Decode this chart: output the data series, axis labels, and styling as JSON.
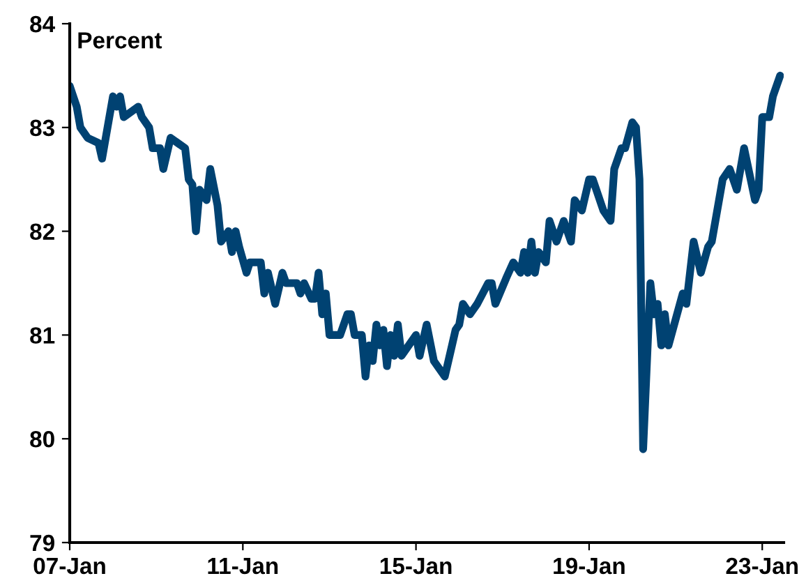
{
  "chart_data": {
    "type": "line",
    "ylabel": "Percent",
    "x": [
      "2007-01",
      "2007-03",
      "2007-04",
      "2007-06",
      "2007-09",
      "2007-10",
      "2008-01",
      "2008-02",
      "2008-03",
      "2008-04",
      "2008-08",
      "2008-09",
      "2008-11",
      "2008-12",
      "2009-02",
      "2009-03",
      "2009-05",
      "2009-07",
      "2009-09",
      "2009-10",
      "2009-11",
      "2009-12",
      "2010-01",
      "2010-03",
      "2010-04",
      "2010-06",
      "2010-07",
      "2010-09",
      "2010-10",
      "2010-11",
      "2010-12",
      "2011-02",
      "2011-03",
      "2011-06",
      "2011-07",
      "2011-08",
      "2011-10",
      "2011-12",
      "2012-01",
      "2012-04",
      "2012-05",
      "2012-06",
      "2012-08",
      "2012-09",
      "2012-10",
      "2012-11",
      "2012-12",
      "2013-01",
      "2013-04",
      "2013-06",
      "2013-07",
      "2013-08",
      "2013-10",
      "2013-11",
      "2013-12",
      "2014-01",
      "2014-02",
      "2014-03",
      "2014-04",
      "2014-05",
      "2014-06",
      "2014-07",
      "2014-08",
      "2014-09",
      "2014-11",
      "2015-01",
      "2015-02",
      "2015-04",
      "2015-06",
      "2015-09",
      "2015-11",
      "2015-12",
      "2016-01",
      "2016-02",
      "2016-04",
      "2016-06",
      "2016-09",
      "2016-10",
      "2016-11",
      "2017-02",
      "2017-04",
      "2017-06",
      "2017-07",
      "2017-08",
      "2017-09",
      "2017-10",
      "2017-11",
      "2018-01",
      "2018-02",
      "2018-04",
      "2018-06",
      "2018-08",
      "2018-09",
      "2018-11",
      "2019-01",
      "2019-02",
      "2019-05",
      "2019-07",
      "2019-08",
      "2019-10",
      "2019-11",
      "2020-01",
      "2020-02",
      "2020-03",
      "2020-04",
      "2020-06",
      "2020-07",
      "2020-08",
      "2020-09",
      "2020-10",
      "2020-11",
      "2021-03",
      "2021-04",
      "2021-06",
      "2021-08",
      "2021-10",
      "2021-11",
      "2022-02",
      "2022-04",
      "2022-06",
      "2022-08",
      "2022-11",
      "2022-12",
      "2023-01",
      "2023-03",
      "2023-04",
      "2023-06"
    ],
    "series": [
      {
        "color": "#004272",
        "values": [
          83.4,
          83.2,
          83.0,
          82.9,
          82.85,
          82.7,
          83.3,
          83.2,
          83.3,
          83.1,
          83.2,
          83.1,
          83.0,
          82.8,
          82.8,
          82.6,
          82.9,
          82.85,
          82.8,
          82.5,
          82.45,
          82.0,
          82.4,
          82.3,
          82.6,
          82.25,
          81.9,
          82.0,
          81.8,
          82.0,
          81.85,
          81.6,
          81.7,
          81.7,
          81.4,
          81.6,
          81.3,
          81.6,
          81.5,
          81.5,
          81.4,
          81.5,
          81.35,
          81.35,
          81.6,
          81.2,
          81.4,
          81.0,
          81.0,
          81.2,
          81.2,
          81.0,
          81.0,
          80.6,
          80.9,
          80.75,
          81.1,
          80.9,
          81.05,
          80.7,
          81.0,
          80.8,
          81.1,
          80.8,
          80.9,
          81.0,
          80.8,
          81.1,
          80.75,
          80.6,
          80.9,
          81.05,
          81.1,
          81.3,
          81.2,
          81.3,
          81.5,
          81.5,
          81.3,
          81.55,
          81.7,
          81.6,
          81.8,
          81.6,
          81.9,
          81.6,
          81.8,
          81.7,
          82.1,
          81.9,
          82.1,
          81.9,
          82.3,
          82.2,
          82.5,
          82.5,
          82.2,
          82.1,
          82.6,
          82.8,
          82.8,
          83.05,
          83.0,
          82.5,
          79.9,
          81.5,
          81.2,
          81.3,
          80.9,
          81.2,
          80.9,
          81.4,
          81.3,
          81.9,
          81.6,
          81.85,
          81.9,
          82.5,
          82.6,
          82.4,
          82.8,
          82.3,
          82.4,
          83.1,
          83.1,
          83.3,
          83.5
        ]
      }
    ],
    "xlim": [
      "2007-01",
      "2023-07"
    ],
    "xticks": [
      {
        "value": "2007-01",
        "label": "07-Jan"
      },
      {
        "value": "2011-01",
        "label": "11-Jan"
      },
      {
        "value": "2015-01",
        "label": "15-Jan"
      },
      {
        "value": "2019-01",
        "label": "19-Jan"
      },
      {
        "value": "2023-01",
        "label": "23-Jan"
      }
    ],
    "ylim": [
      79,
      84
    ],
    "yticks": [
      79,
      80,
      81,
      82,
      83,
      84
    ],
    "grid": false,
    "marker": "none",
    "line_style": "solid"
  }
}
